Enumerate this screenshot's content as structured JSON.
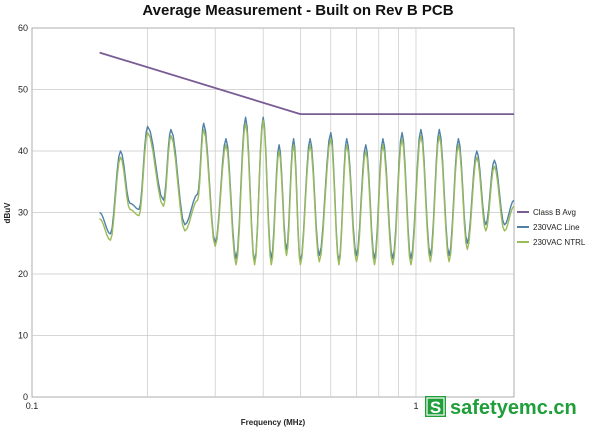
{
  "chart_data": {
    "type": "line",
    "title": "Average Measurement - Built on Rev B PCB",
    "xlabel": "Frequency (MHz)",
    "ylabel": "dBuV",
    "xscale": "log",
    "xlim": [
      0.1,
      1.8
    ],
    "ylim": [
      0,
      60
    ],
    "x_tick_labels": [
      {
        "value": 0.1,
        "label": "0.1"
      },
      {
        "value": 1,
        "label": "1"
      }
    ],
    "y_ticks": [
      0,
      10,
      20,
      30,
      40,
      50,
      60
    ],
    "grid": true,
    "legend_position": "right",
    "series": [
      {
        "name": "Class B Avg",
        "color": "#7a5c94",
        "x": [
          0.15,
          0.5,
          1.8
        ],
        "y": [
          56,
          46,
          46
        ]
      },
      {
        "name": "230VAC Line",
        "color": "#4f81a8",
        "x": [
          0.15,
          0.16,
          0.17,
          0.18,
          0.19,
          0.2,
          0.22,
          0.23,
          0.25,
          0.27,
          0.28,
          0.3,
          0.32,
          0.34,
          0.36,
          0.38,
          0.4,
          0.42,
          0.44,
          0.46,
          0.48,
          0.5,
          0.53,
          0.56,
          0.6,
          0.63,
          0.66,
          0.7,
          0.74,
          0.78,
          0.82,
          0.87,
          0.92,
          0.97,
          1.03,
          1.09,
          1.15,
          1.22,
          1.29,
          1.36,
          1.44,
          1.52,
          1.6,
          1.7,
          1.8
        ],
        "y": [
          30,
          26.5,
          40,
          31.5,
          30.5,
          44,
          32,
          43.5,
          28,
          33,
          44.5,
          25,
          42,
          22.5,
          45.5,
          22,
          45.5,
          22.5,
          41,
          24,
          42,
          22,
          42,
          23,
          43,
          22,
          42,
          23,
          41,
          22.5,
          42,
          22.5,
          43,
          22.5,
          43.5,
          23,
          43.5,
          23,
          42,
          25,
          40,
          28,
          38.5,
          28,
          32
        ]
      },
      {
        "name": "230VAC NTRL",
        "color": "#9bbb59",
        "x": [
          0.15,
          0.16,
          0.17,
          0.18,
          0.19,
          0.2,
          0.22,
          0.23,
          0.25,
          0.27,
          0.28,
          0.3,
          0.32,
          0.34,
          0.36,
          0.38,
          0.4,
          0.42,
          0.44,
          0.46,
          0.48,
          0.5,
          0.53,
          0.56,
          0.6,
          0.63,
          0.66,
          0.7,
          0.74,
          0.78,
          0.82,
          0.87,
          0.92,
          0.97,
          1.03,
          1.09,
          1.15,
          1.22,
          1.29,
          1.36,
          1.44,
          1.52,
          1.6,
          1.7,
          1.8
        ],
        "y": [
          29,
          25.5,
          39,
          30.5,
          29.5,
          43,
          31,
          42.5,
          27,
          32,
          43.5,
          24.5,
          41,
          21.5,
          44.5,
          21.5,
          45,
          21.5,
          40,
          23,
          41,
          21.5,
          41,
          22,
          42,
          21.5,
          41,
          22,
          40,
          21.5,
          41,
          21.5,
          42,
          21.5,
          42.5,
          22,
          42.5,
          22,
          41,
          24,
          39,
          27,
          37.5,
          27,
          31
        ]
      }
    ]
  },
  "watermark": {
    "badge": "S",
    "text": "safetyemc.cn",
    "color": "#1f9e3a"
  }
}
